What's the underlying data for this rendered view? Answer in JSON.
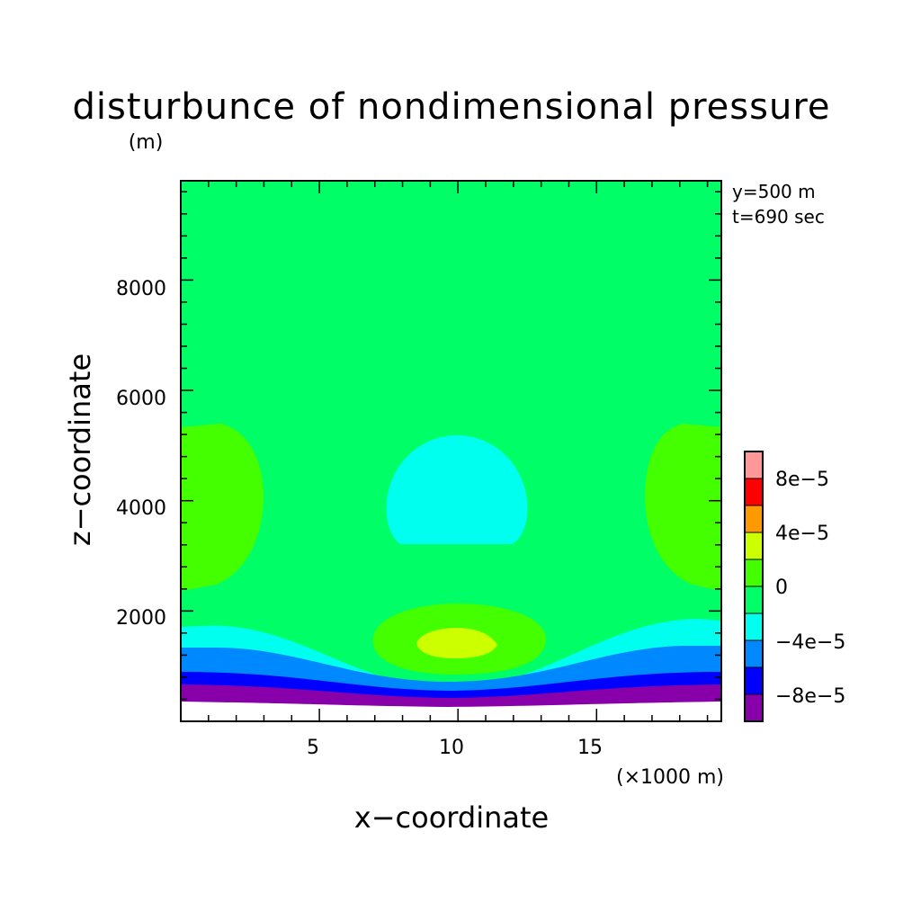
{
  "chart_data": {
    "type": "heatmap",
    "title": "disturbunce of nondimensional pressure",
    "xlabel": "x−coordinate",
    "ylabel": "z−coordinate",
    "yunit": "(m)",
    "xunit": "(×1000 m)",
    "annotations": [
      "y=500 m",
      "t=690 sec"
    ],
    "xlim": [
      0,
      19.5
    ],
    "ylim": [
      0,
      9800
    ],
    "xticks": [
      5,
      10,
      15
    ],
    "xtick_labels": [
      "5",
      "10",
      "15"
    ],
    "yticks": [
      2000,
      4000,
      6000,
      8000
    ],
    "ytick_labels": [
      "2000",
      "4000",
      "6000",
      "8000"
    ],
    "colorbar": {
      "levels": [
        {
          "range": "8e-5 to 1e-4",
          "color": "#ff9999"
        },
        {
          "range": "6e-5 to 8e-5",
          "color": "#ff0000"
        },
        {
          "range": "4e-5 to 6e-5",
          "color": "#ff9900"
        },
        {
          "range": "2e-5 to 4e-5",
          "color": "#ccff00"
        },
        {
          "range": "0 to 2e-5",
          "color": "#44ff00"
        },
        {
          "range": "-2e-5 to 0",
          "color": "#00ff66"
        },
        {
          "range": "-4e-5 to -2e-5",
          "color": "#00ffee"
        },
        {
          "range": "-6e-5 to -4e-5",
          "color": "#0088ff"
        },
        {
          "range": "-8e-5 to -6e-5",
          "color": "#0000ff"
        },
        {
          "range": "-1e-4 to -8e-5",
          "color": "#8800aa"
        }
      ],
      "tick_labels": [
        "8e−5",
        "4e−5",
        "0",
        "−4e−5",
        "−8e−5"
      ]
    }
  }
}
